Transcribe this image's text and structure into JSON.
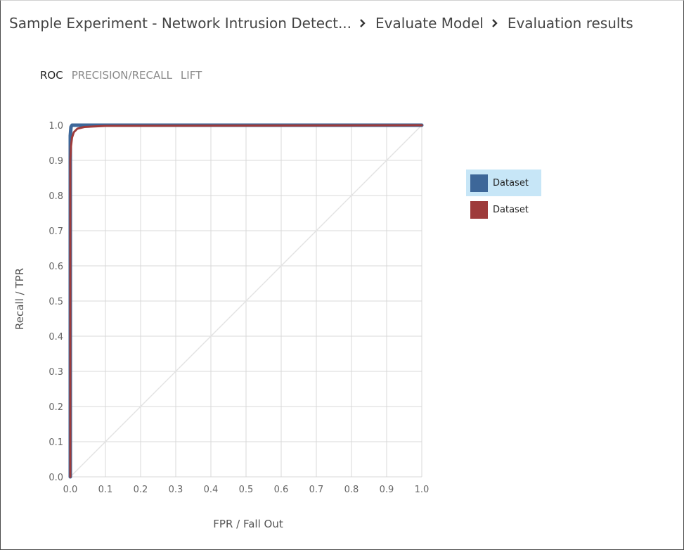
{
  "breadcrumb": {
    "items": [
      {
        "label": "Sample Experiment - Network Intrusion Detect..."
      },
      {
        "label": "Evaluate Model"
      },
      {
        "label": "Evaluation results"
      }
    ]
  },
  "tabs": [
    {
      "label": "ROC",
      "active": true
    },
    {
      "label": "PRECISION/RECALL",
      "active": false
    },
    {
      "label": "LIFT",
      "active": false
    }
  ],
  "legend": [
    {
      "label": "Dataset",
      "color": "#3d6799",
      "selected": true
    },
    {
      "label": "Dataset",
      "color": "#9e3b3b",
      "selected": false
    }
  ],
  "chart_data": {
    "type": "line",
    "xlabel": "FPR / Fall Out",
    "ylabel": "Recall / TPR",
    "xlim": [
      0,
      1
    ],
    "ylim": [
      0,
      1
    ],
    "x_ticks": [
      "0.0",
      "0.1",
      "0.2",
      "0.3",
      "0.4",
      "0.5",
      "0.6",
      "0.7",
      "0.8",
      "0.9",
      "1.0"
    ],
    "y_ticks": [
      "0.0",
      "0.1",
      "0.2",
      "0.3",
      "0.4",
      "0.5",
      "0.6",
      "0.7",
      "0.8",
      "0.9",
      "1.0"
    ],
    "grid": true,
    "legend_position": "right",
    "diagonal_reference": true,
    "series": [
      {
        "name": "Dataset",
        "color": "#3d6799",
        "points": [
          [
            0,
            0
          ],
          [
            0,
            0.97
          ],
          [
            0.002,
            0.995
          ],
          [
            0.005,
            1.0
          ],
          [
            0.05,
            1.0
          ],
          [
            1.0,
            1.0
          ]
        ]
      },
      {
        "name": "Dataset",
        "color": "#9e3b3b",
        "points": [
          [
            0,
            0
          ],
          [
            0.0,
            0.9
          ],
          [
            0.002,
            0.94
          ],
          [
            0.005,
            0.965
          ],
          [
            0.01,
            0.98
          ],
          [
            0.02,
            0.99
          ],
          [
            0.04,
            0.995
          ],
          [
            0.1,
            0.998
          ],
          [
            1.0,
            1.0
          ]
        ]
      }
    ]
  }
}
